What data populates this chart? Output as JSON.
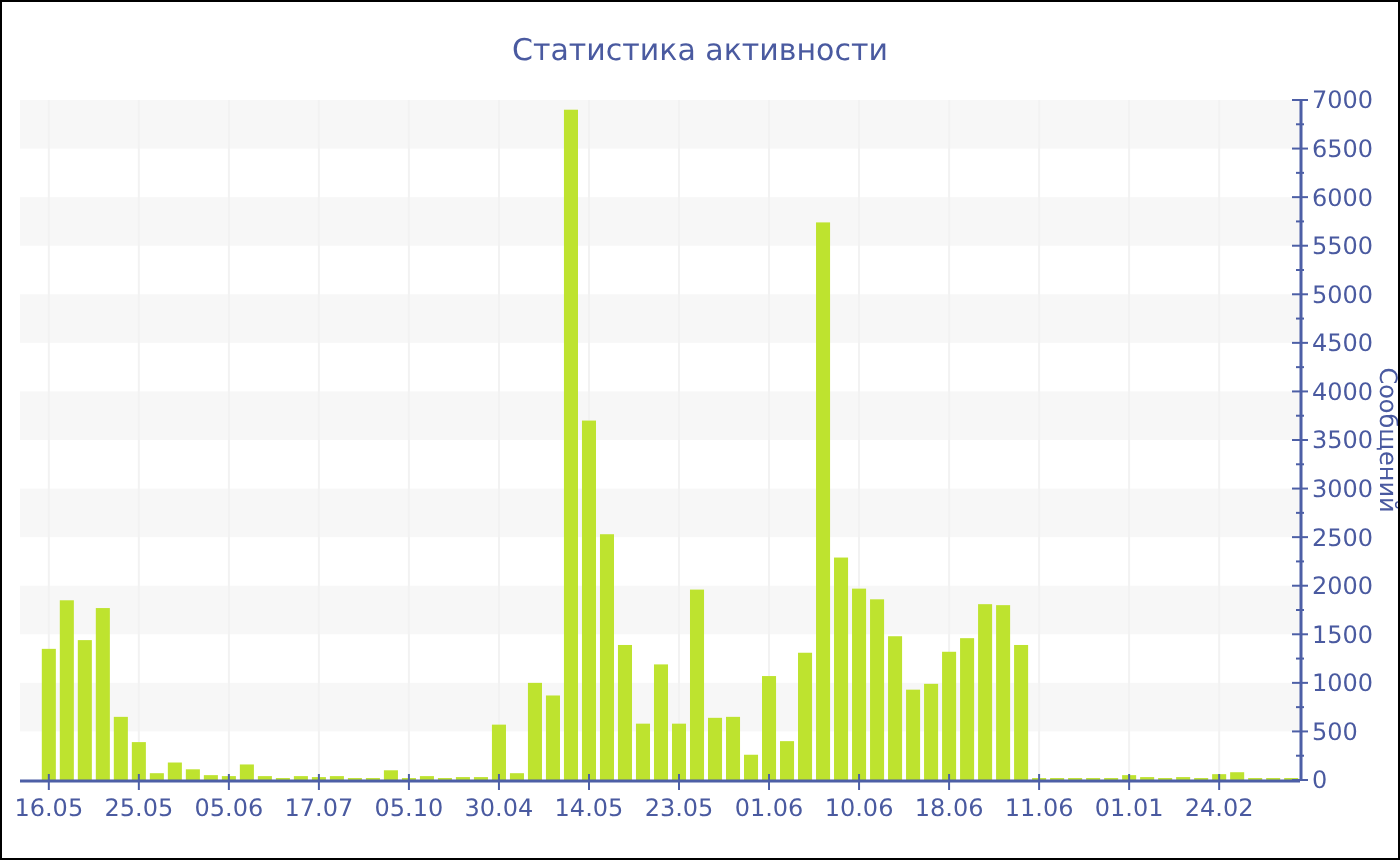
{
  "chart_data": {
    "type": "bar",
    "title": "Статистика активности",
    "ylabel": "Сообщений",
    "categories": [
      "16.05",
      null,
      null,
      null,
      null,
      "25.05",
      null,
      null,
      null,
      null,
      "05.06",
      null,
      null,
      null,
      null,
      "17.07",
      null,
      null,
      null,
      null,
      "05.10",
      null,
      null,
      null,
      null,
      "30.04",
      null,
      null,
      null,
      null,
      "14.05",
      null,
      null,
      null,
      null,
      "23.05",
      null,
      null,
      null,
      null,
      "01.06",
      null,
      null,
      null,
      null,
      "10.06",
      null,
      null,
      null,
      null,
      "18.06",
      null,
      null,
      null,
      null,
      "11.06",
      null,
      null,
      null,
      null,
      "01.01",
      null,
      null,
      null,
      null,
      "24.02",
      null,
      null,
      null,
      null
    ],
    "values": [
      1350,
      1850,
      1440,
      1770,
      650,
      390,
      70,
      180,
      110,
      50,
      40,
      160,
      40,
      20,
      40,
      30,
      40,
      20,
      20,
      100,
      20,
      40,
      20,
      30,
      30,
      570,
      70,
      1000,
      870,
      6900,
      3700,
      2530,
      1390,
      580,
      1190,
      580,
      1960,
      640,
      650,
      260,
      1070,
      400,
      1310,
      5740,
      2290,
      1970,
      1860,
      1480,
      930,
      990,
      1320,
      1460,
      1810,
      1800,
      1390,
      20,
      20,
      20,
      20,
      20,
      50,
      30,
      20,
      30,
      20,
      60,
      80,
      20,
      20,
      20
    ],
    "color": "#bee32f",
    "ylim": [
      0,
      7000
    ],
    "yticks": [
      0,
      {
        "value": 250,
        "label": null
      },
      500,
      {
        "value": 750,
        "label": null
      },
      1000,
      {
        "value": 1250,
        "label": null
      },
      1500,
      {
        "value": 1750,
        "label": null
      },
      2000,
      {
        "value": 2250,
        "label": null
      },
      2500,
      {
        "value": 2750,
        "label": null
      },
      3000,
      {
        "value": 3250,
        "label": null
      },
      3500,
      {
        "value": 3750,
        "label": null
      },
      4000,
      {
        "value": 4250,
        "label": null
      },
      4500,
      {
        "value": 4750,
        "label": null
      },
      5000,
      {
        "value": 5250,
        "label": null
      },
      5500,
      {
        "value": 5750,
        "label": null
      },
      6000,
      {
        "value": 6250,
        "label": null
      },
      6500,
      {
        "value": 6750,
        "label": null
      },
      7000
    ],
    "grid": true
  }
}
